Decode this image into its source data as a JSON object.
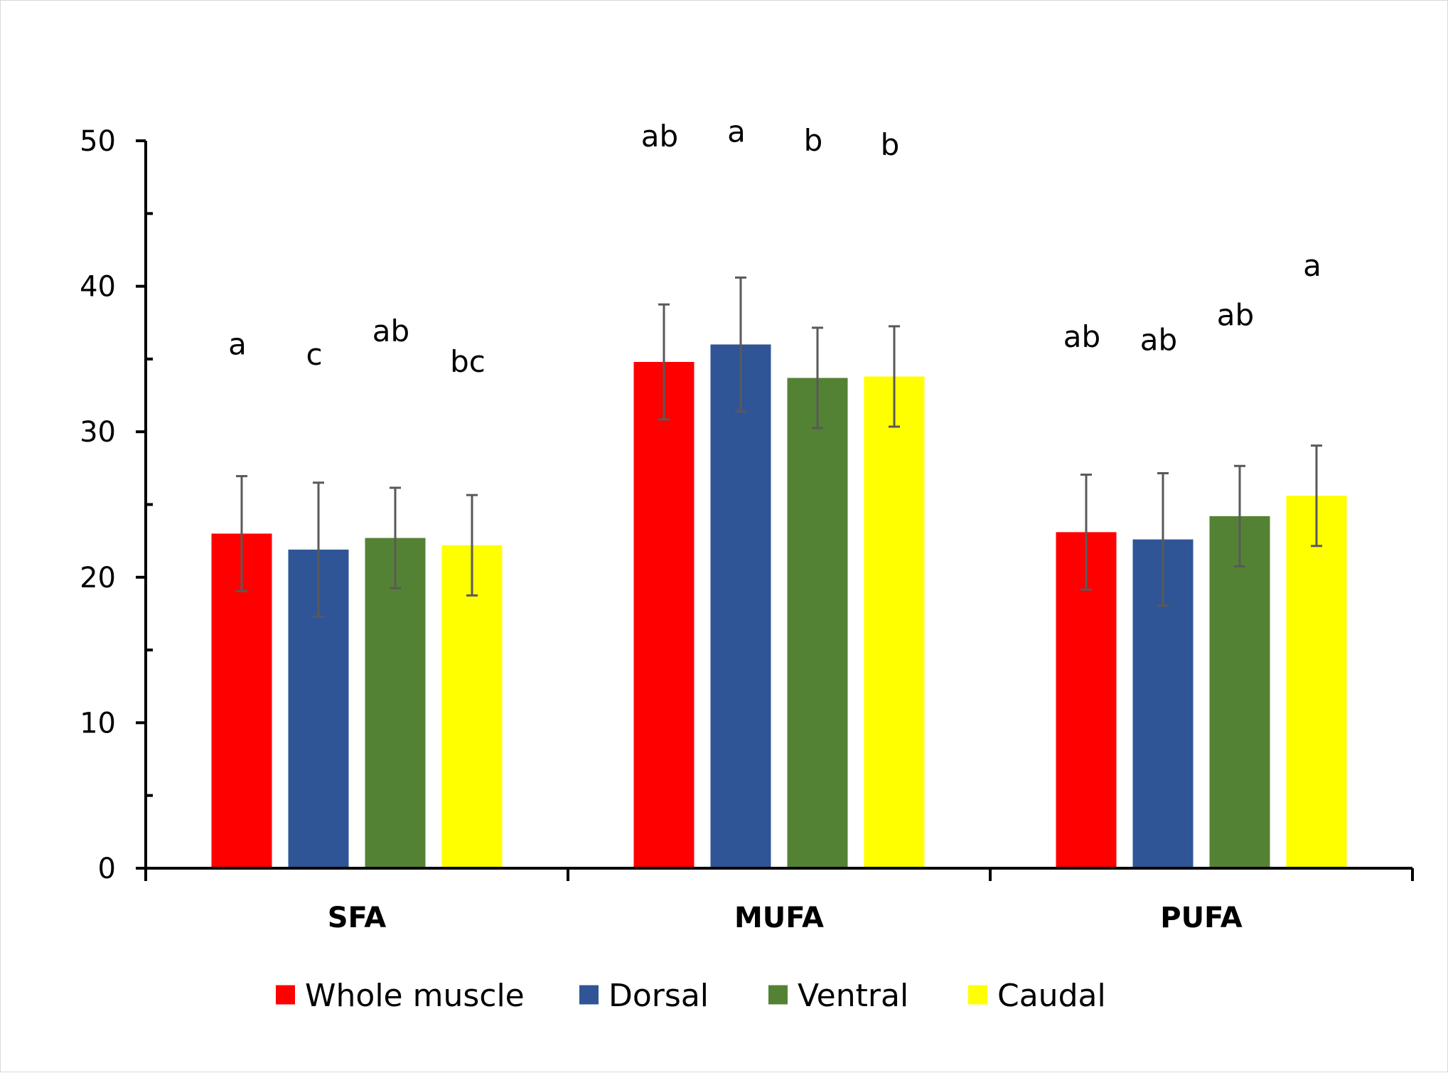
{
  "chart_data": {
    "type": "bar",
    "title": "",
    "xlabel": "",
    "ylabel": "",
    "ylim": [
      0,
      50
    ],
    "yticks": [
      0,
      10,
      20,
      30,
      40,
      50
    ],
    "ytick_labels": [
      "0",
      "10",
      "20",
      "30",
      "40",
      "50"
    ],
    "grid": false,
    "legend_position": "bottom",
    "categories": [
      "SFA",
      "MUFA",
      "PUFA"
    ],
    "series": [
      {
        "name": "Whole muscle",
        "color": "#ff0000",
        "values": [
          23.0,
          34.8,
          23.1
        ],
        "errors": [
          3.95,
          3.95,
          3.95
        ],
        "letters": [
          "a",
          "ab",
          "ab"
        ]
      },
      {
        "name": "Dorsal",
        "color": "#2f5597",
        "values": [
          21.9,
          36.0,
          22.6
        ],
        "errors": [
          4.6,
          4.6,
          4.55
        ],
        "letters": [
          "c",
          "a",
          "ab"
        ]
      },
      {
        "name": "Ventral",
        "color": "#548235",
        "values": [
          22.7,
          33.7,
          24.2
        ],
        "errors": [
          3.45,
          3.45,
          3.45
        ],
        "letters": [
          "ab",
          "b",
          "ab"
        ]
      },
      {
        "name": "Caudal",
        "color": "#ffff00",
        "values": [
          22.2,
          33.8,
          25.6
        ],
        "errors": [
          3.45,
          3.45,
          3.45
        ],
        "letters": [
          "bc",
          "b",
          "a"
        ]
      }
    ],
    "letter_values": [
      [
        36.0,
        50.3,
        36.5
      ],
      [
        35.3,
        50.6,
        36.3
      ],
      [
        36.9,
        50.0,
        38.0
      ],
      [
        34.8,
        49.7,
        41.4
      ]
    ]
  }
}
